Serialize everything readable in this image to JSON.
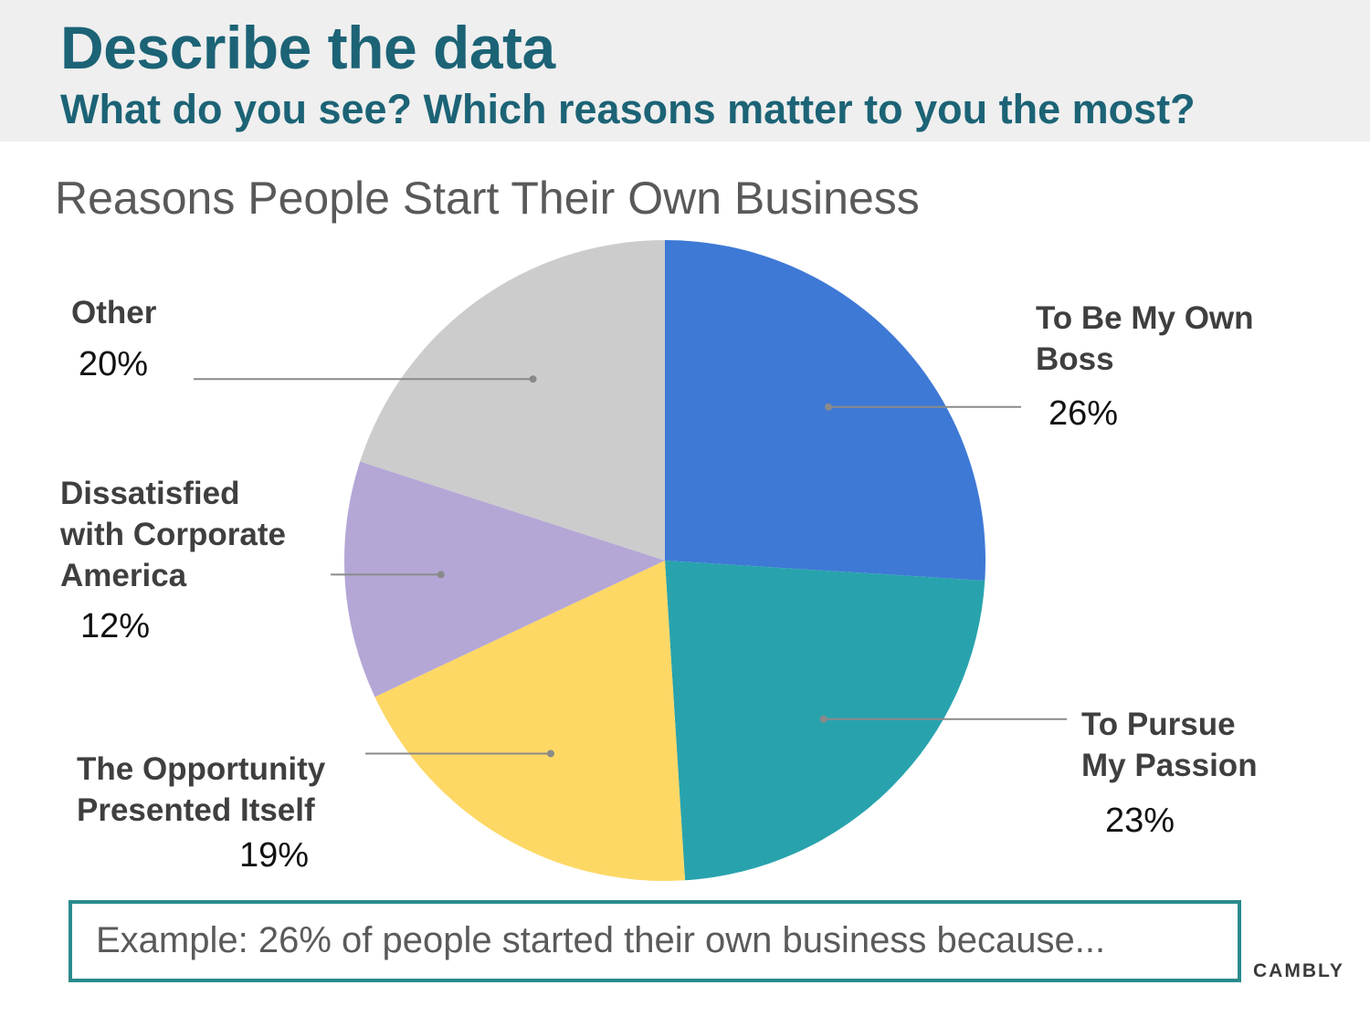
{
  "header": {
    "heading": "Describe the data",
    "subheading": "What do you see? Which reasons matter to you the most?"
  },
  "chart_data": {
    "type": "pie",
    "title": "Reasons People Start Their Own Business",
    "categories": [
      "To Be My Own Boss",
      "To Pursue My Passion",
      "The Opportunity Presented Itself",
      "Dissatisfied with Corporate America",
      "Other"
    ],
    "values": [
      26,
      23,
      19,
      12,
      20
    ],
    "value_labels": [
      "26%",
      "23%",
      "19%",
      "12%",
      "20%"
    ],
    "label_text": [
      "To Be My Own\nBoss",
      "To Pursue\nMy Passion",
      "The Opportunity\nPresented Itself",
      "Dissatisfied\nwith Corporate\nAmerica",
      "Other"
    ],
    "colors": [
      "#3e79d6",
      "#28a3ad",
      "#fdd865",
      "#b4a7d6",
      "#cccccc"
    ],
    "start_angle": "12 o'clock",
    "direction": "clockwise",
    "legend": "none"
  },
  "example": {
    "text": "Example: 26% of people started their own business because..."
  },
  "brand": {
    "name": "CAMBLY"
  }
}
